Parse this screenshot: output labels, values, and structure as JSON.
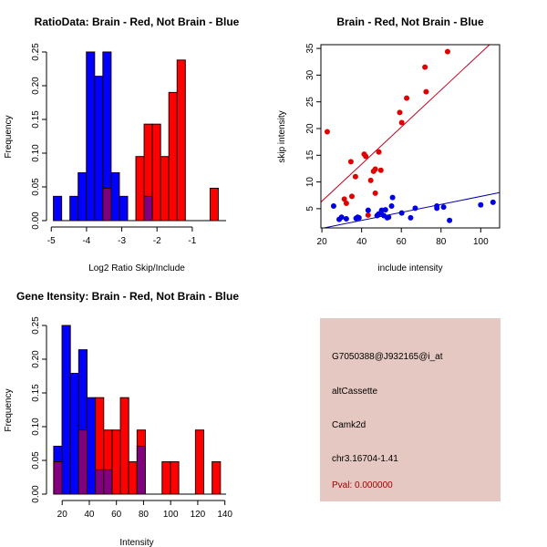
{
  "chart_data": [
    {
      "type": "bar",
      "subtype": "overlaid-histogram",
      "title": "RatioData: Brain - Red, Not Brain - Blue",
      "xlabel": "Log2 Ratio Skip/Include",
      "ylabel": "Frequency",
      "bin_start": -4.94,
      "bin_width": 0.234,
      "xlim": [
        -5.11,
        -0.04
      ],
      "ylim": [
        0,
        0.25
      ],
      "xticks": [
        -5,
        -4,
        -3,
        -2,
        -1
      ],
      "xtick_labels": [
        "-5",
        "-4",
        "-3",
        "-2",
        "-1"
      ],
      "yticks": [
        0,
        0.05,
        0.1,
        0.15,
        0.2,
        0.25
      ],
      "ytick_labels": [
        "0.00",
        "0.05",
        "0.10",
        "0.15",
        "0.20",
        "0.25"
      ],
      "series": [
        {
          "name": "Not Brain",
          "color": "#0000ff",
          "values": [
            0.036,
            0,
            0.036,
            0.071,
            0.25,
            0.214,
            0.25,
            0.071,
            0.036,
            0,
            0,
            0.036,
            0,
            0,
            0,
            0,
            0,
            0,
            0,
            0
          ]
        },
        {
          "name": "Brain",
          "color": "#ff0000",
          "values": [
            0,
            0,
            0,
            0,
            0,
            0,
            0.048,
            0,
            0,
            0,
            0.095,
            0.143,
            0.143,
            0.095,
            0.19,
            0.238,
            0,
            0,
            0,
            0.048
          ]
        }
      ],
      "overlap_color": "#800080"
    },
    {
      "type": "scatter",
      "title": "Brain - Red, Not Brain - Blue",
      "xlabel": "include intensity",
      "ylabel": "skip intensity",
      "xlim": [
        19.5,
        109.5
      ],
      "ylim": [
        1.4,
        35.7
      ],
      "xticks": [
        20,
        40,
        60,
        80,
        100
      ],
      "xtick_labels": [
        "20",
        "40",
        "60",
        "80",
        "100"
      ],
      "yticks": [
        5,
        10,
        15,
        20,
        25,
        30,
        35
      ],
      "ytick_labels": [
        "5",
        "10",
        "15",
        "20",
        "25",
        "30",
        "35"
      ],
      "series": [
        {
          "name": "Brain",
          "color": "#e00000",
          "line_color": "#c00020",
          "fit": {
            "slope": 0.347,
            "intercept": -0.54
          },
          "points": [
            [
              22.7,
              19.4
            ],
            [
              31.3,
              6.8
            ],
            [
              32.3,
              6.0
            ],
            [
              34.6,
              13.8
            ],
            [
              35.1,
              7.3
            ],
            [
              36.9,
              11.0
            ],
            [
              41.3,
              15.2
            ],
            [
              42.1,
              14.8
            ],
            [
              43.3,
              3.8
            ],
            [
              44.6,
              10.3
            ],
            [
              46.0,
              12.0
            ],
            [
              46.9,
              12.4
            ],
            [
              46.9,
              7.9
            ],
            [
              48.7,
              15.6
            ],
            [
              49.7,
              12.2
            ],
            [
              59.2,
              23.0
            ],
            [
              60.2,
              21.1
            ],
            [
              62.7,
              25.7
            ],
            [
              71.9,
              31.5
            ],
            [
              72.5,
              26.9
            ],
            [
              83.3,
              34.4
            ]
          ]
        },
        {
          "name": "Not Brain",
          "color": "#0000e0",
          "line_color": "#0000a0",
          "fit": {
            "slope": 0.0748,
            "intercept": -0.18
          },
          "points": [
            [
              25.9,
              5.5
            ],
            [
              28.7,
              3.0
            ],
            [
              29.9,
              3.4
            ],
            [
              32.3,
              3.1
            ],
            [
              37.2,
              3.2
            ],
            [
              38.0,
              3.4
            ],
            [
              38.7,
              3.3
            ],
            [
              43.3,
              4.7
            ],
            [
              47.8,
              3.7
            ],
            [
              48.6,
              4.0
            ],
            [
              49.7,
              4.2
            ],
            [
              50.1,
              4.7
            ],
            [
              51.2,
              3.7
            ],
            [
              52.0,
              4.8
            ],
            [
              52.9,
              3.3
            ],
            [
              53.6,
              3.4
            ],
            [
              55.1,
              5.5
            ],
            [
              55.6,
              7.1
            ],
            [
              60.2,
              4.2
            ],
            [
              64.7,
              3.3
            ],
            [
              67.0,
              5.1
            ],
            [
              77.9,
              5.1
            ],
            [
              77.9,
              5.5
            ],
            [
              81.3,
              5.3
            ],
            [
              84.3,
              2.8
            ],
            [
              100.0,
              5.7
            ],
            [
              106.2,
              6.2
            ]
          ]
        }
      ]
    },
    {
      "type": "bar",
      "subtype": "overlaid-histogram",
      "title": "Gene Itensity: Brain - Red, Not Brain - Blue",
      "xlabel": "Intensity",
      "ylabel": "Frequency",
      "bin_start": 13.74,
      "bin_width": 6.15,
      "xlim": [
        9.1,
        140.9
      ],
      "ylim": [
        0,
        0.25
      ],
      "xticks": [
        20,
        40,
        60,
        80,
        100,
        120,
        140
      ],
      "xtick_labels": [
        "20",
        "40",
        "60",
        "80",
        "100",
        "120",
        "140"
      ],
      "yticks": [
        0,
        0.05,
        0.1,
        0.15,
        0.2,
        0.25
      ],
      "ytick_labels": [
        "0.00",
        "0.05",
        "0.10",
        "0.15",
        "0.20",
        "0.25"
      ],
      "series": [
        {
          "name": "Not Brain",
          "color": "#0000ff",
          "values": [
            0.071,
            0.25,
            0.179,
            0.214,
            0.143,
            0.036,
            0.036,
            0,
            0,
            0,
            0.071,
            0,
            0,
            0,
            0,
            0,
            0,
            0,
            0,
            0
          ]
        },
        {
          "name": "Brain",
          "color": "#ff0000",
          "values": [
            0.048,
            0,
            0,
            0.095,
            0,
            0.143,
            0.095,
            0.095,
            0.143,
            0.048,
            0.095,
            0,
            0,
            0.048,
            0.048,
            0,
            0,
            0.095,
            0,
            0.048
          ]
        }
      ],
      "overlap_color": "#800080"
    }
  ],
  "info": {
    "probe": "G7050388@J932165@i_at",
    "event_type": "altCassette",
    "gene": "Camk2d",
    "location": "chr3.16704-1.41",
    "pval": "Pval: 0.000000",
    "pval_color": "#a00000"
  }
}
